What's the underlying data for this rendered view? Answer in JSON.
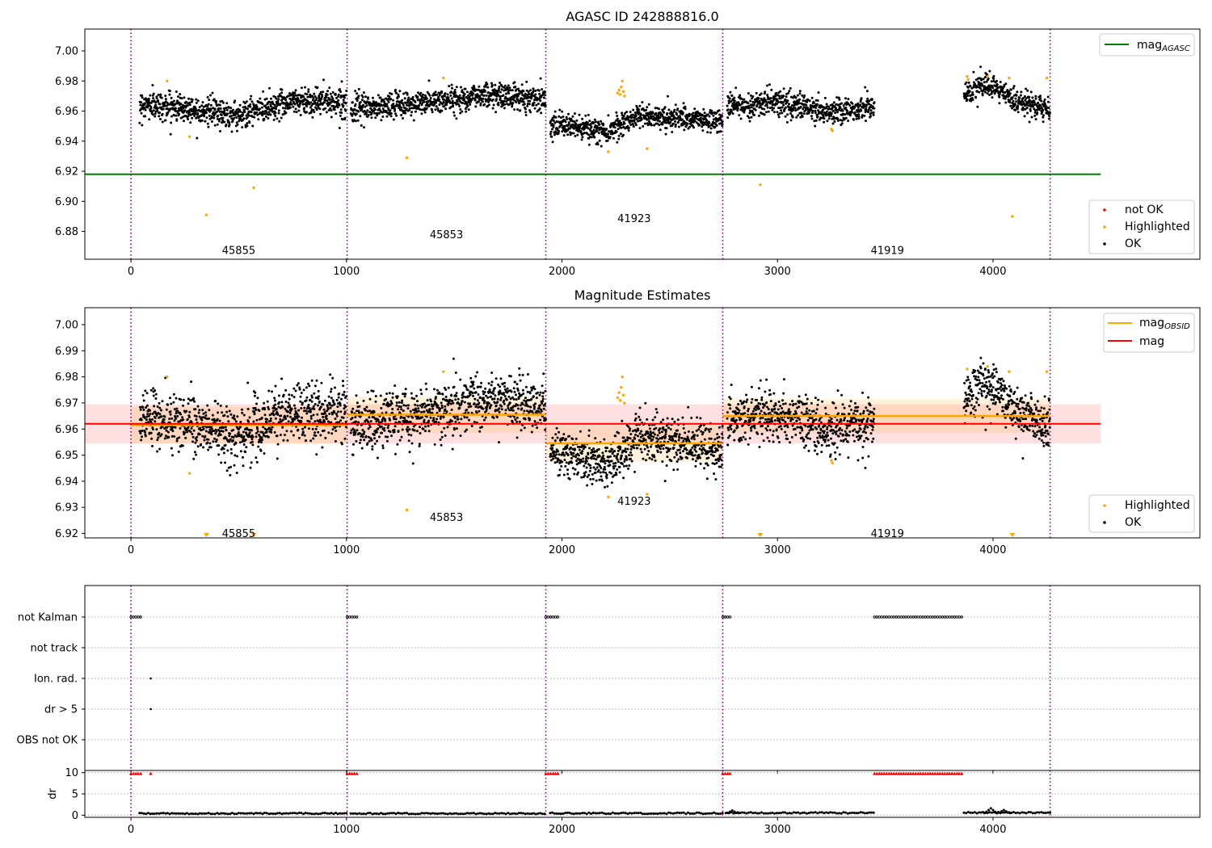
{
  "chart_data": [
    {
      "type": "scatter",
      "title": "AGASC ID 242888816.0",
      "xlim": [
        -214,
        4960
      ],
      "ylim": [
        6.8615,
        7.0145
      ],
      "x_ticks": [
        0,
        1000,
        2000,
        3000,
        4000
      ],
      "y_ticks": [
        6.88,
        6.9,
        6.92,
        6.94,
        6.96,
        6.98,
        7.0
      ],
      "y_tick_labels": [
        "6.88",
        "6.90",
        "6.92",
        "6.94",
        "6.96",
        "6.98",
        "7.00"
      ],
      "vlines": [
        0,
        1003,
        1925,
        2746,
        4265
      ],
      "mag_agasc": 6.918,
      "mag_agasc_xrange": [
        -214,
        4500
      ],
      "obsid_labels": [
        {
          "text": "45855",
          "x": 500,
          "y": 6.8675
        },
        {
          "text": "45853",
          "x": 1464,
          "y": 6.878
        },
        {
          "text": "41923",
          "x": 2335,
          "y": 6.8885
        },
        {
          "text": "41919",
          "x": 3510,
          "y": 6.8675
        }
      ],
      "segments": [
        {
          "x": [
            40,
            1000
          ],
          "levels": [
            [
              0,
              6.965
            ],
            [
              250,
              6.962
            ],
            [
              500,
              6.957
            ],
            [
              750,
              6.967
            ],
            [
              1000,
              6.966
            ]
          ],
          "noise": 0.0045
        },
        {
          "x": [
            1020,
            1925
          ],
          "levels": [
            [
              1020,
              6.961
            ],
            [
              1400,
              6.966
            ],
            [
              1650,
              6.971
            ],
            [
              1925,
              6.968
            ]
          ],
          "noise": 0.0042
        },
        {
          "x": [
            1945,
            2746
          ],
          "levels": [
            [
              1945,
              6.952
            ],
            [
              2200,
              6.946
            ],
            [
              2350,
              6.957
            ],
            [
              2746,
              6.953
            ]
          ],
          "noise": 0.0038
        },
        {
          "x": [
            2766,
            3450
          ],
          "levels": [
            [
              2766,
              6.963
            ],
            [
              3000,
              6.966
            ],
            [
              3250,
              6.959
            ],
            [
              3450,
              6.963
            ]
          ],
          "noise": 0.0042
        },
        {
          "x": [
            3865,
            4265
          ],
          "levels": [
            [
              3865,
              6.972
            ],
            [
              3970,
              6.977
            ],
            [
              4120,
              6.966
            ],
            [
              4265,
              6.961
            ]
          ],
          "noise": 0.0038
        }
      ],
      "highlighted_points": [
        [
          168,
          6.98
        ],
        [
          272,
          6.943
        ],
        [
          350,
          6.891
        ],
        [
          570,
          6.909
        ],
        [
          1280,
          6.929
        ],
        [
          1450,
          6.982
        ],
        [
          2215,
          6.933
        ],
        [
          2258,
          6.972
        ],
        [
          2265,
          6.974
        ],
        [
          2270,
          6.971
        ],
        [
          2275,
          6.976
        ],
        [
          2280,
          6.98
        ],
        [
          2285,
          6.973
        ],
        [
          2290,
          6.97
        ],
        [
          2395,
          6.935
        ],
        [
          2920,
          6.911
        ],
        [
          3250,
          6.948
        ],
        [
          3255,
          6.947
        ],
        [
          3880,
          6.983
        ],
        [
          3885,
          6.981
        ],
        [
          3975,
          6.983
        ],
        [
          4075,
          6.982
        ],
        [
          4090,
          6.89
        ],
        [
          4250,
          6.982
        ]
      ],
      "legend_main": [
        {
          "label": "mag",
          "subscript": "AGASC",
          "color": "#008000"
        }
      ],
      "legend_points": [
        {
          "label": "not OK",
          "color": "#ff0000"
        },
        {
          "label": "Highlighted",
          "color": "#ffa500"
        },
        {
          "label": "OK",
          "color": "#000000"
        }
      ]
    },
    {
      "type": "scatter",
      "title": "Magnitude Estimates",
      "xlim": [
        -214,
        4960
      ],
      "ylim": [
        6.9183,
        7.0065
      ],
      "x_ticks": [
        0,
        1000,
        2000,
        3000,
        4000
      ],
      "y_ticks": [
        6.92,
        6.93,
        6.94,
        6.95,
        6.96,
        6.97,
        6.98,
        6.99,
        7.0
      ],
      "y_tick_labels": [
        "6.92",
        "6.93",
        "6.94",
        "6.95",
        "6.96",
        "6.97",
        "6.98",
        "6.99",
        "7.00"
      ],
      "vlines": [
        0,
        1003,
        1925,
        2746,
        4265
      ],
      "mag": 6.962,
      "mag_band": [
        6.9545,
        6.9695
      ],
      "mag_xrange": [
        -214,
        4500
      ],
      "mag_obsid": [
        {
          "x": [
            0,
            1003
          ],
          "mag": 6.9615,
          "band": [
            6.9545,
            6.9685
          ]
        },
        {
          "x": [
            1003,
            1925
          ],
          "mag": 6.9655,
          "band": [
            6.9585,
            6.9725
          ]
        },
        {
          "x": [
            1925,
            2746
          ],
          "mag": 6.9545,
          "band": [
            6.9475,
            6.9615
          ]
        },
        {
          "x": [
            2746,
            4265
          ],
          "mag": 6.965,
          "band": [
            6.9585,
            6.9715
          ]
        }
      ],
      "obsid_labels": [
        {
          "text": "45855",
          "x": 500,
          "y": 6.92
        },
        {
          "text": "45853",
          "x": 1464,
          "y": 6.9262
        },
        {
          "text": "41923",
          "x": 2335,
          "y": 6.9324
        },
        {
          "text": "41919",
          "x": 3510,
          "y": 6.92
        }
      ],
      "segments": [
        {
          "x": [
            40,
            1000
          ],
          "levels": [
            [
              0,
              6.965
            ],
            [
              250,
              6.962
            ],
            [
              500,
              6.957
            ],
            [
              750,
              6.967
            ],
            [
              1000,
              6.966
            ]
          ],
          "noise": 0.0045
        },
        {
          "x": [
            1020,
            1925
          ],
          "levels": [
            [
              1020,
              6.961
            ],
            [
              1400,
              6.966
            ],
            [
              1650,
              6.971
            ],
            [
              1925,
              6.968
            ]
          ],
          "noise": 0.0042
        },
        {
          "x": [
            1945,
            2746
          ],
          "levels": [
            [
              1945,
              6.952
            ],
            [
              2200,
              6.946
            ],
            [
              2350,
              6.957
            ],
            [
              2746,
              6.953
            ]
          ],
          "noise": 0.0038
        },
        {
          "x": [
            2766,
            3450
          ],
          "levels": [
            [
              2766,
              6.963
            ],
            [
              3000,
              6.966
            ],
            [
              3250,
              6.959
            ],
            [
              3450,
              6.963
            ]
          ],
          "noise": 0.0042
        },
        {
          "x": [
            3865,
            4265
          ],
          "levels": [
            [
              3865,
              6.972
            ],
            [
              3970,
              6.977
            ],
            [
              4120,
              6.966
            ],
            [
              4265,
              6.961
            ]
          ],
          "noise": 0.0038
        }
      ],
      "highlighted_points": [
        [
          168,
          6.98
        ],
        [
          272,
          6.943
        ],
        [
          1280,
          6.929
        ],
        [
          1450,
          6.982
        ],
        [
          2215,
          6.934
        ],
        [
          2258,
          6.972
        ],
        [
          2265,
          6.974
        ],
        [
          2270,
          6.971
        ],
        [
          2275,
          6.976
        ],
        [
          2280,
          6.98
        ],
        [
          2285,
          6.973
        ],
        [
          2290,
          6.97
        ],
        [
          2395,
          6.935
        ],
        [
          3250,
          6.948
        ],
        [
          3255,
          6.947
        ],
        [
          3880,
          6.983
        ],
        [
          3975,
          6.984
        ],
        [
          4075,
          6.982
        ],
        [
          4250,
          6.982
        ]
      ],
      "clipped_markers_x": [
        350,
        570,
        2920,
        4090
      ],
      "legend_main": [
        {
          "label": "mag",
          "subscript": "OBSID",
          "color": "#ffa500"
        },
        {
          "label": "mag",
          "subscript": "",
          "color": "#ff0000"
        }
      ],
      "legend_points": [
        {
          "label": "Highlighted",
          "color": "#ffa500"
        },
        {
          "label": "OK",
          "color": "#000000"
        }
      ]
    },
    {
      "type": "scatter",
      "title": "",
      "xlim": [
        -214,
        4960
      ],
      "x_ticks": [
        0,
        1000,
        2000,
        3000,
        4000
      ],
      "vlines": [
        0,
        1003,
        1925,
        2746,
        4265
      ],
      "flag_rows": [
        "not Kalman",
        "not track",
        "Ion. rad.",
        "dr > 5",
        "OBS not OK"
      ],
      "flag_ranges": {
        "not Kalman": [
          [
            0,
            45
          ],
          [
            1003,
            1050
          ],
          [
            1925,
            1985
          ],
          [
            2746,
            2790
          ],
          [
            3450,
            3865
          ]
        ],
        "not track": [],
        "Ion. rad.": [
          [
            92,
            92
          ]
        ],
        "dr > 5": [
          [
            92,
            92
          ]
        ],
        "OBS not OK": []
      }
    },
    {
      "type": "scatter",
      "title": "",
      "ylabel": "dr",
      "xlim": [
        -214,
        4960
      ],
      "ylim": [
        -0.5,
        10.5
      ],
      "x_ticks": [
        0,
        1000,
        2000,
        3000,
        4000
      ],
      "x_tick_labels": [
        "0",
        "1000",
        "2000",
        "3000",
        "4000"
      ],
      "y_ticks": [
        0,
        5,
        10
      ],
      "y_tick_labels": [
        "0",
        "5",
        "10"
      ],
      "vlines": [
        0,
        1003,
        1925,
        2746,
        4265
      ],
      "clipped_ranges": [
        [
          0,
          45
        ],
        [
          92,
          92
        ],
        [
          1003,
          1050
        ],
        [
          1925,
          1985
        ],
        [
          2746,
          2790
        ],
        [
          3450,
          3865
        ]
      ],
      "dr_segments": [
        [
          40,
          1000,
          0.4
        ],
        [
          1020,
          1925,
          0.4
        ],
        [
          1945,
          2746,
          0.45
        ],
        [
          2766,
          3450,
          0.55
        ],
        [
          3865,
          4265,
          0.6
        ]
      ],
      "dr_bumps": [
        [
          2790,
          1.1
        ],
        [
          3990,
          1.6
        ],
        [
          4050,
          1.2
        ]
      ]
    }
  ]
}
